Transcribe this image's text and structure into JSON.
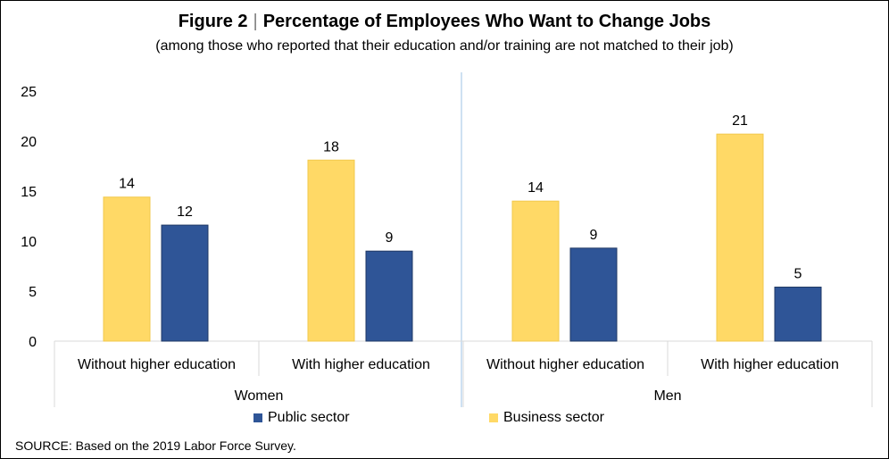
{
  "figure": {
    "label": "Figure 2",
    "separator": "|",
    "title": "Percentage of Employees Who Want to Change Jobs",
    "subtitle": "(among those who reported that their education and/or training are not matched to their job)",
    "source": "SOURCE: Based on the 2019 Labor Force Survey."
  },
  "legend": {
    "items": [
      {
        "label": "Public sector",
        "color": "#2f5597"
      },
      {
        "label": "Business sector",
        "color": "#ffd966"
      }
    ]
  },
  "chart_data": {
    "type": "bar",
    "groups": [
      "Women",
      "Men"
    ],
    "categories": [
      "Without higher education",
      "With higher education",
      "Without higher education",
      "With higher education"
    ],
    "category_group": [
      "Women",
      "Women",
      "Men",
      "Men"
    ],
    "series": [
      {
        "name": "Business sector",
        "color": "#ffd966",
        "values": [
          14.4,
          18.1,
          14.0,
          20.7
        ],
        "labels": [
          "14",
          "18",
          "14",
          "21"
        ]
      },
      {
        "name": "Public sector",
        "color": "#2f5597",
        "values": [
          11.6,
          9.0,
          9.3,
          5.4
        ],
        "labels": [
          "12",
          "9",
          "9",
          "5"
        ]
      }
    ],
    "ylim": [
      0,
      25
    ],
    "yticks": [
      "0",
      "5",
      "10",
      "15",
      "20",
      "25"
    ],
    "grid": false,
    "legend_position": "bottom",
    "xlabel": "",
    "ylabel": ""
  }
}
